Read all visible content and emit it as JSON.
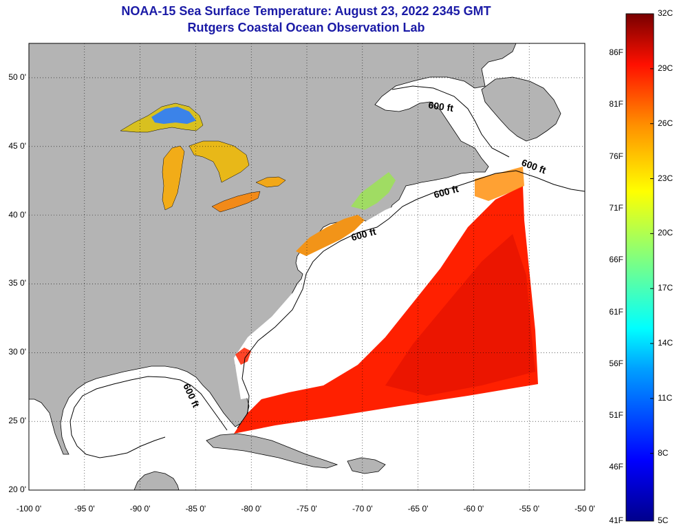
{
  "title": "NOAA-15 Sea Surface Temperature:  August 23, 2022 2345 GMT",
  "subtitle": "Rutgers Coastal Ocean Observation Lab",
  "map": {
    "lon_range": [
      -100,
      -50
    ],
    "lat_range": [
      20,
      52.5
    ],
    "lon_ticks": [
      {
        "v": -100,
        "label": "-100 0'"
      },
      {
        "v": -95,
        "label": "-95 0'"
      },
      {
        "v": -90,
        "label": "-90 0'"
      },
      {
        "v": -85,
        "label": "-85 0'"
      },
      {
        "v": -80,
        "label": "-80 0'"
      },
      {
        "v": -75,
        "label": "-75 0'"
      },
      {
        "v": -70,
        "label": "-70 0'"
      },
      {
        "v": -65,
        "label": "-65 0'"
      },
      {
        "v": -60,
        "label": "-60 0'"
      },
      {
        "v": -55,
        "label": "-55 0'"
      },
      {
        "v": -50,
        "label": "-50 0'"
      }
    ],
    "lat_ticks": [
      {
        "v": 50,
        "label": "50 0'"
      },
      {
        "v": 45,
        "label": "45 0'"
      },
      {
        "v": 40,
        "label": "40 0'"
      },
      {
        "v": 35,
        "label": "35 0'"
      },
      {
        "v": 30,
        "label": "30 0'"
      },
      {
        "v": 25,
        "label": "25 0'"
      },
      {
        "v": 20,
        "label": "20 0'"
      }
    ],
    "grid": "dotted",
    "land_color": "#b4b4b4",
    "isobath_label": "600 ft"
  },
  "colorbar": {
    "celsius": [
      "32C",
      "29C",
      "26C",
      "23C",
      "20C",
      "17C",
      "14C",
      "11C",
      "8C",
      "5C"
    ],
    "fahrenheit": [
      "86F",
      "81F",
      "76F",
      "71F",
      "66F",
      "61F",
      "56F",
      "51F",
      "46F",
      "41F"
    ]
  }
}
